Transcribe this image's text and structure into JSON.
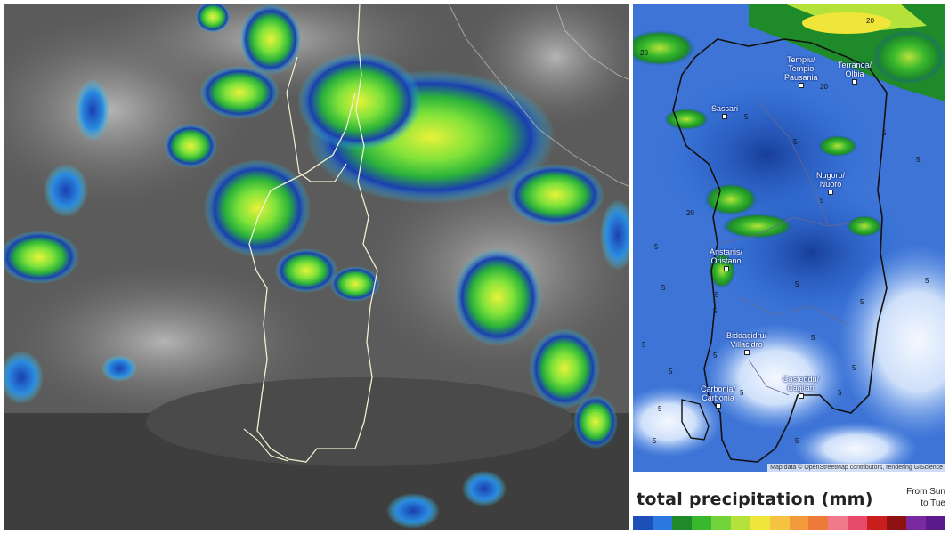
{
  "legend": {
    "title": "total precipitation (mm)",
    "period_line1": "From Sun",
    "period_line2": "to Tue",
    "colors": [
      "#1d4fb8",
      "#2a78e0",
      "#1e8a2a",
      "#38b82c",
      "#72d43a",
      "#b5e23a",
      "#f0e63a",
      "#f5c242",
      "#f29a3c",
      "#ee7a3a",
      "#f07a8a",
      "#e84a6a",
      "#c81e1e",
      "#8e1212",
      "#7a2aa0",
      "#5a1a8a"
    ]
  },
  "map": {
    "attribution": "Map data © OpenStreetMap contributors, rendering GIScience",
    "cities": [
      {
        "line1": "Tempiu/",
        "line2": "Tempio",
        "line3": "Pausania"
      },
      {
        "line1": "Terranoa/",
        "line2": "Olbia",
        "line3": ""
      },
      {
        "line1": "Sassari",
        "line2": "",
        "line3": ""
      },
      {
        "line1": "Nugoro/",
        "line2": "Nuoro",
        "line3": ""
      },
      {
        "line1": "Aristanis/",
        "line2": "Oristano",
        "line3": ""
      },
      {
        "line1": "Biddacidru/",
        "line2": "Villacidro",
        "line3": ""
      },
      {
        "line1": "Casteddu/",
        "line2": "Cagliari",
        "line3": ""
      },
      {
        "line1": "Carbonia/",
        "line2": "Carbonia",
        "line3": ""
      }
    ],
    "contour_labels": [
      "20",
      "20",
      "20",
      "5",
      "5",
      "5",
      "5",
      "5",
      "5",
      "5",
      "5",
      "5",
      "5",
      "5",
      "5",
      "5",
      "5",
      "5",
      "5",
      "5",
      "5",
      "5",
      "5",
      "5",
      "5",
      "20"
    ]
  }
}
